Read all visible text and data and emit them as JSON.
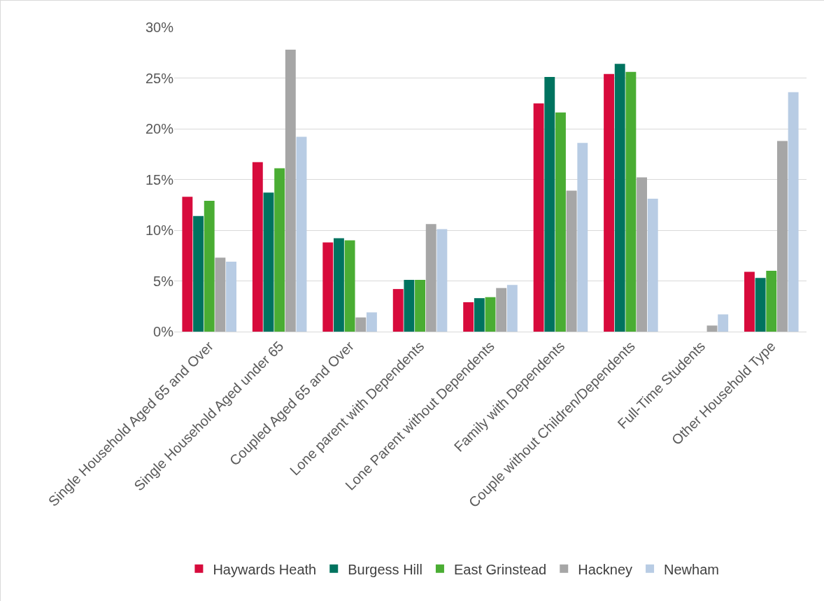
{
  "chart_data": {
    "type": "bar",
    "categories": [
      "Single Household Aged 65 and Over",
      "Single Household Aged under 65",
      "Coupled Aged 65 and Over",
      "Lone parent with Dependents",
      "Lone Parent without Dependents",
      "Family with Dependents",
      "Couple without Children/Dependents",
      "Full-Time Students",
      "Other Household Type"
    ],
    "series": [
      {
        "name": "Haywards Heath",
        "color": "#d70b3c",
        "values": [
          13.3,
          16.7,
          8.8,
          4.2,
          2.9,
          22.5,
          25.4,
          0,
          5.9
        ]
      },
      {
        "name": "Burgess Hill",
        "color": "#00735f",
        "values": [
          11.4,
          13.7,
          9.2,
          5.1,
          3.3,
          25.1,
          26.4,
          0,
          5.3
        ]
      },
      {
        "name": "East Grinstead",
        "color": "#4aad33",
        "values": [
          12.9,
          16.1,
          9.0,
          5.1,
          3.4,
          21.6,
          25.6,
          0,
          6.0
        ]
      },
      {
        "name": "Hackney",
        "color": "#a6a6a6",
        "values": [
          7.3,
          27.8,
          1.4,
          10.6,
          4.3,
          13.9,
          15.2,
          0.6,
          18.8
        ]
      },
      {
        "name": "Newham",
        "color": "#b8cce4",
        "values": [
          6.9,
          19.2,
          1.9,
          10.1,
          4.6,
          18.6,
          13.1,
          1.7,
          23.6
        ]
      }
    ],
    "ylim": [
      0,
      30
    ],
    "yticks": [
      {
        "value": 0,
        "label": "0%"
      },
      {
        "value": 5,
        "label": "5%"
      },
      {
        "value": 10,
        "label": "10%"
      },
      {
        "value": 15,
        "label": "15%"
      },
      {
        "value": 20,
        "label": "20%"
      },
      {
        "value": 25,
        "label": "25%"
      },
      {
        "value": 30,
        "label": "30%"
      }
    ],
    "grid": "y",
    "legend": "bottom"
  }
}
